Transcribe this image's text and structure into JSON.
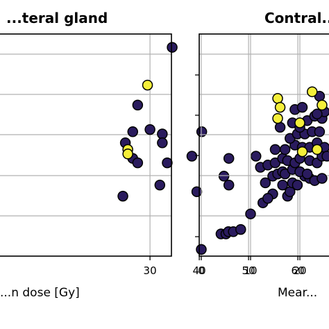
{
  "chart_data": [
    {
      "type": "scatter",
      "title": "...teral gland",
      "xlabel": "...n dose [Gy]",
      "ylabel": "",
      "xlim": [
        21,
        60
      ],
      "ylim": [
        0,
        1
      ],
      "xticks": [
        30,
        40,
        50,
        60
      ],
      "grid": true,
      "colors": {
        "dark": "#2a1b5e",
        "yellow": "#f5ef3a"
      },
      "series": [
        {
          "values": [
            [
              34.5,
              0.94
            ],
            [
              27.5,
              0.68
            ],
            [
              30,
              0.57
            ],
            [
              26.5,
              0.56
            ],
            [
              32.5,
              0.55
            ],
            [
              40.5,
              0.56
            ],
            [
              32.5,
              0.51
            ],
            [
              25,
              0.51
            ],
            [
              38.5,
              0.45
            ],
            [
              46,
              0.44
            ],
            [
              51.5,
              0.45
            ],
            [
              26.5,
              0.44
            ],
            [
              27.5,
              0.42
            ],
            [
              33.5,
              0.42
            ],
            [
              45,
              0.36
            ],
            [
              32,
              0.32
            ],
            [
              46,
              0.32
            ],
            [
              39.5,
              0.29
            ],
            [
              24.5,
              0.27
            ]
          ]
        },
        {
          "values": [
            [
              29.5,
              0.77
            ],
            [
              25.5,
              0.48
            ],
            [
              25.5,
              0.46
            ]
          ]
        }
      ]
    },
    {
      "type": "scatter",
      "title": "Contral...",
      "xlabel": "Mear...",
      "ylabel": "",
      "xlim": [
        0,
        26
      ],
      "ylim": [
        0,
        1
      ],
      "xticks": [
        0,
        10,
        20
      ],
      "grid": true,
      "colors": {
        "dark": "#2a1b5e",
        "yellow": "#f5ef3a"
      },
      "series": [
        {
          "values": [
            [
              0,
              0.03
            ],
            [
              4,
              0.1
            ],
            [
              5,
              0.1
            ],
            [
              5.5,
              0.11
            ],
            [
              6.5,
              0.11
            ],
            [
              8,
              0.12
            ],
            [
              10,
              0.19
            ],
            [
              12.5,
              0.24
            ],
            [
              14.5,
              0.28
            ],
            [
              13.5,
              0.26
            ],
            [
              17.5,
              0.27
            ],
            [
              18,
              0.29
            ],
            [
              16.5,
              0.32
            ],
            [
              18.5,
              0.33
            ],
            [
              19.5,
              0.32
            ],
            [
              21,
              0.36
            ],
            [
              22,
              0.35
            ],
            [
              13,
              0.33
            ],
            [
              14.5,
              0.36
            ],
            [
              15.5,
              0.37
            ],
            [
              16.5,
              0.38
            ],
            [
              17,
              0.37
            ],
            [
              18.5,
              0.39
            ],
            [
              20,
              0.38
            ],
            [
              21.5,
              0.37
            ],
            [
              23,
              0.34
            ],
            [
              24.5,
              0.35
            ],
            [
              12,
              0.4
            ],
            [
              13.5,
              0.41
            ],
            [
              15,
              0.42
            ],
            [
              16.5,
              0.44
            ],
            [
              17.5,
              0.43
            ],
            [
              19,
              0.42
            ],
            [
              20,
              0.44
            ],
            [
              22,
              0.43
            ],
            [
              23.5,
              0.42
            ],
            [
              24.5,
              0.45
            ],
            [
              15,
              0.48
            ],
            [
              17,
              0.48
            ],
            [
              19,
              0.5
            ],
            [
              20.5,
              0.49
            ],
            [
              22,
              0.49
            ],
            [
              23.5,
              0.51
            ],
            [
              25,
              0.49
            ],
            [
              18,
              0.53
            ],
            [
              19.5,
              0.55
            ],
            [
              21,
              0.55
            ],
            [
              22.5,
              0.56
            ],
            [
              24,
              0.56
            ],
            [
              16,
              0.58
            ],
            [
              18.5,
              0.6
            ],
            [
              20,
              0.58
            ],
            [
              21.5,
              0.61
            ],
            [
              23,
              0.63
            ],
            [
              24.5,
              0.62
            ],
            [
              25,
              0.65
            ],
            [
              19,
              0.66
            ],
            [
              20.5,
              0.67
            ],
            [
              23.5,
              0.64
            ],
            [
              25.5,
              0.45
            ],
            [
              24,
              0.72
            ]
          ]
        },
        {
          "values": [
            [
              15.5,
              0.71
            ],
            [
              16,
              0.67
            ],
            [
              15.5,
              0.62
            ],
            [
              22.5,
              0.74
            ],
            [
              20,
              0.6
            ],
            [
              20.5,
              0.47
            ],
            [
              23.5,
              0.48
            ],
            [
              24.5,
              0.68
            ]
          ]
        }
      ]
    }
  ]
}
